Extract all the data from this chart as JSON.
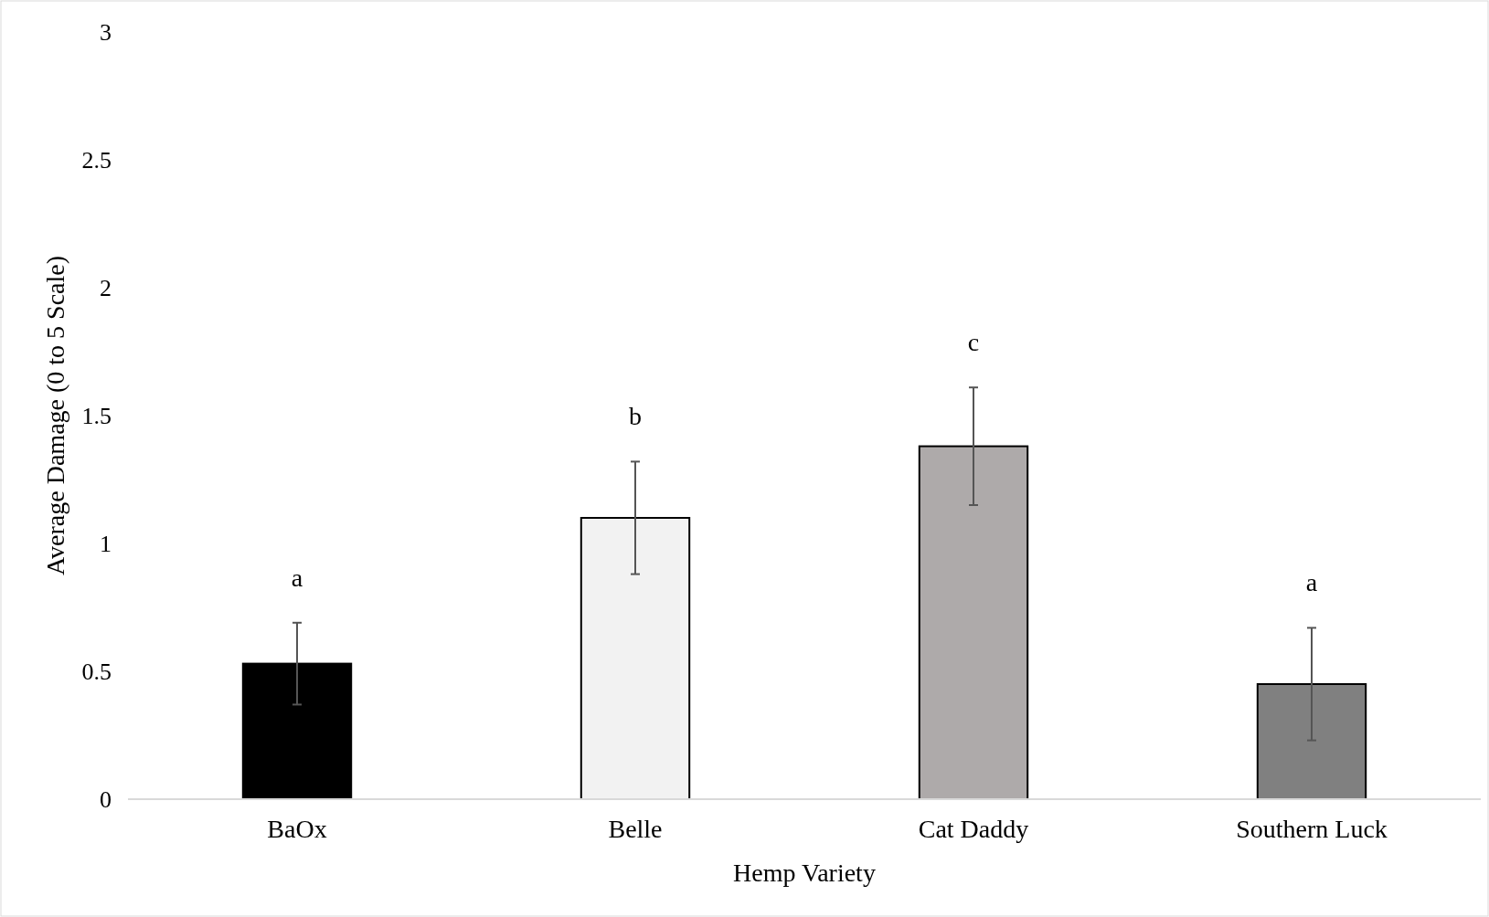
{
  "chart_data": {
    "type": "bar",
    "xlabel": "Hemp Variety",
    "ylabel": "Average Damage (0 to 5 Scale)",
    "categories": [
      "BaOx",
      "Belle",
      "Cat Daddy",
      "Southern Luck"
    ],
    "values": [
      0.53,
      1.1,
      1.38,
      0.45
    ],
    "errors": [
      0.16,
      0.22,
      0.23,
      0.22
    ],
    "colors": [
      "#000000",
      "#f2f2f2",
      "#aeaaaa",
      "#808080"
    ],
    "ylim": [
      0,
      3
    ],
    "yticks": [
      0,
      0.5,
      1,
      1.5,
      2,
      2.5,
      3
    ],
    "annotations": [
      "a",
      "b",
      "c",
      "a"
    ]
  }
}
